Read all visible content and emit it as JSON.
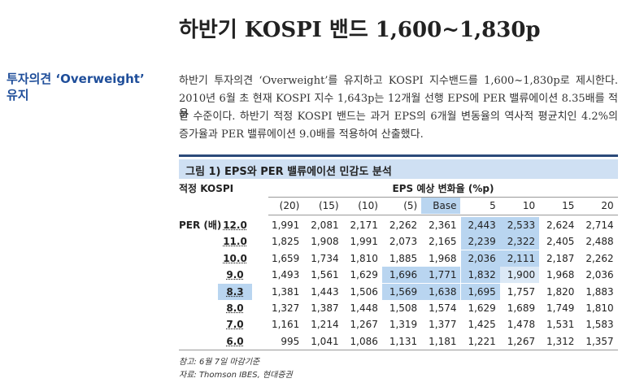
{
  "header": {
    "title": "하반기 KOSPI 밴드 1,600~1,830p"
  },
  "sidebar": {
    "lines": [
      "투자의견 ‘Overweight’",
      "유지"
    ]
  },
  "paragraph": {
    "lines": [
      "하반기 투자의견 ‘Overweight’를 유지하고 KOSPI 지수밴드를 1,600~1,830p로 제시한다.",
      "2010년 6월 초 현재 KOSPI 지수 1,643p는 12개월 선행 EPS에 PER 밸류에이션 8.35배를 적용",
      "한 수준이다. 하반기 적정 KOSPI 밴드는 과거 EPS의 6개월 변동율의 역사적 평균치인 4.2%의",
      "증가율과 PER 밸류에이션 9.0배를 적용하여 산출했다."
    ]
  },
  "figure": {
    "caption": "그림 1) EPS와 PER 밸류에이션 민감도 분석",
    "row_header": "적정 KOSPI",
    "column_group": "EPS 예상 변화율 (%p)",
    "row_group": "PER (배)",
    "columns": [
      "(20)",
      "(15)",
      "(10)",
      "(5)",
      "Base",
      "5",
      "10",
      "15",
      "20"
    ],
    "rows": [
      {
        "label": "12.0",
        "values": [
          "1,991",
          "2,081",
          "2,171",
          "2,262",
          "2,361",
          "2,443",
          "2,533",
          "2,624",
          "2,714"
        ]
      },
      {
        "label": "11.0",
        "values": [
          "1,825",
          "1,908",
          "1,991",
          "2,073",
          "2,165",
          "2,239",
          "2,322",
          "2,405",
          "2,488"
        ]
      },
      {
        "label": "10.0",
        "values": [
          "1,659",
          "1,734",
          "1,810",
          "1,885",
          "1,968",
          "2,036",
          "2,111",
          "2,187",
          "2,262"
        ]
      },
      {
        "label": "9.0",
        "values": [
          "1,493",
          "1,561",
          "1,629",
          "1,696",
          "1,771",
          "1,832",
          "1,900",
          "1,968",
          "2,036"
        ]
      },
      {
        "label": "8.3",
        "values": [
          "1,381",
          "1,443",
          "1,506",
          "1,569",
          "1,638",
          "1,695",
          "1,757",
          "1,820",
          "1,883"
        ]
      },
      {
        "label": "8.0",
        "values": [
          "1,327",
          "1,387",
          "1,448",
          "1,508",
          "1,574",
          "1,629",
          "1,689",
          "1,749",
          "1,810"
        ]
      },
      {
        "label": "7.0",
        "values": [
          "1,161",
          "1,214",
          "1,267",
          "1,319",
          "1,377",
          "1,425",
          "1,478",
          "1,531",
          "1,583"
        ]
      },
      {
        "label": "6.0",
        "values": [
          "995",
          "1,041",
          "1,086",
          "1,131",
          "1,181",
          "1,221",
          "1,267",
          "1,312",
          "1,357"
        ]
      }
    ]
  },
  "notes": [
    "참고: 6월 7일 마감기준",
    "자료: Thomson IBES, 현대증권"
  ]
}
